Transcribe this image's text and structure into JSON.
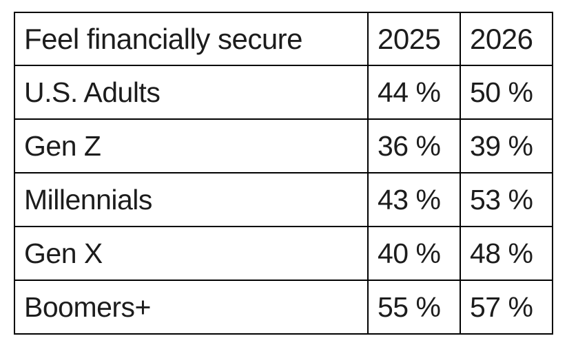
{
  "table": {
    "header": {
      "label": "Feel financially secure",
      "col_2025": "2025",
      "col_2026": "2026"
    },
    "rows": [
      {
        "label": "U.S. Adults",
        "y2025": "44 %",
        "y2026": "50 %"
      },
      {
        "label": "Gen Z",
        "y2025": "36 %",
        "y2026": "39 %"
      },
      {
        "label": "Millennials",
        "y2025": "43 %",
        "y2026": "53 %"
      },
      {
        "label": "Gen X",
        "y2025": "40 %",
        "y2026": "48 %"
      },
      {
        "label": "Boomers+",
        "y2025": "55 %",
        "y2026": "57 %"
      }
    ]
  },
  "chart_data": {
    "type": "table",
    "title": "Feel financially secure",
    "columns": [
      "Feel financially secure",
      "2025",
      "2026"
    ],
    "categories": [
      "U.S. Adults",
      "Gen Z",
      "Millennials",
      "Gen X",
      "Boomers+"
    ],
    "series": [
      {
        "name": "2025",
        "values": [
          44,
          36,
          43,
          40,
          55
        ]
      },
      {
        "name": "2026",
        "values": [
          50,
          39,
          53,
          48,
          57
        ]
      }
    ],
    "unit": "%"
  },
  "colors": {
    "text": "#1c1c1c",
    "border": "#000000",
    "background": "#ffffff"
  }
}
